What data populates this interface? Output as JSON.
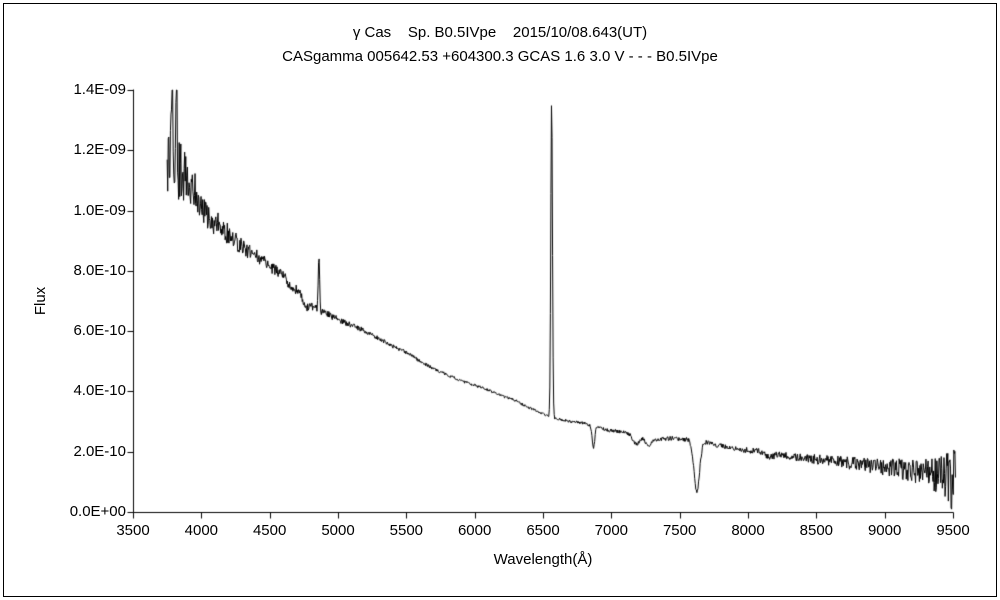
{
  "chart_data": {
    "type": "line",
    "title": "γ Cas    Sp. B0.5IVpe    2015/10/08.643(UT)",
    "subtitle": "CASgamma 005642.53 +604300.3 GCAS 1.6 3.0 V - - - B0.5IVpe",
    "xlabel": "Wavelength(Å)",
    "ylabel": "Flux",
    "xlim": [
      3500,
      9500
    ],
    "ylim": [
      0,
      1.4e-09
    ],
    "x_ticks": [
      3500,
      4000,
      4500,
      5000,
      5500,
      6000,
      6500,
      7000,
      7500,
      8000,
      8500,
      9000,
      9500
    ],
    "y_ticks": [
      {
        "value": 0,
        "label": "0.0E+00"
      },
      {
        "value": 2e-10,
        "label": "2.0E-10"
      },
      {
        "value": 4e-10,
        "label": "4.0E-10"
      },
      {
        "value": 6e-10,
        "label": "6.0E-10"
      },
      {
        "value": 8e-10,
        "label": "8.0E-10"
      },
      {
        "value": 1e-09,
        "label": "1.0E-09"
      },
      {
        "value": 1.2e-09,
        "label": "1.2E-09"
      },
      {
        "value": 1.4e-09,
        "label": "1.4E-09"
      }
    ],
    "line_color": "#000000",
    "background": "#ffffff",
    "grid": false,
    "wavelength_range": [
      3750,
      9520
    ],
    "flux_scale": 1e-10,
    "continuum": [
      [
        3750,
        11.8
      ],
      [
        3790,
        12.0
      ],
      [
        3850,
        11.2
      ],
      [
        3900,
        11.0
      ],
      [
        3950,
        10.7
      ],
      [
        4000,
        10.1
      ],
      [
        4060,
        9.65
      ],
      [
        4120,
        9.55
      ],
      [
        4200,
        9.2
      ],
      [
        4300,
        8.8
      ],
      [
        4400,
        8.5
      ],
      [
        4500,
        8.15
      ],
      [
        4600,
        7.85
      ],
      [
        4650,
        7.5
      ],
      [
        4700,
        7.35
      ],
      [
        4760,
        7.0
      ],
      [
        4820,
        6.8
      ],
      [
        4861,
        6.7
      ],
      [
        4950,
        6.5
      ],
      [
        5000,
        6.4
      ],
      [
        5100,
        6.2
      ],
      [
        5200,
        6.0
      ],
      [
        5300,
        5.75
      ],
      [
        5400,
        5.5
      ],
      [
        5500,
        5.3
      ],
      [
        5600,
        5.0
      ],
      [
        5700,
        4.75
      ],
      [
        5800,
        4.55
      ],
      [
        5900,
        4.35
      ],
      [
        6000,
        4.2
      ],
      [
        6100,
        4.05
      ],
      [
        6200,
        3.85
      ],
      [
        6300,
        3.7
      ],
      [
        6400,
        3.45
      ],
      [
        6500,
        3.25
      ],
      [
        6600,
        3.1
      ],
      [
        6700,
        3.0
      ],
      [
        6800,
        2.95
      ],
      [
        6900,
        2.8
      ],
      [
        7000,
        2.7
      ],
      [
        7100,
        2.65
      ],
      [
        7200,
        2.55
      ],
      [
        7300,
        2.4
      ],
      [
        7450,
        2.45
      ],
      [
        7550,
        2.4
      ],
      [
        7700,
        2.3
      ],
      [
        7800,
        2.2
      ],
      [
        7900,
        2.1
      ],
      [
        8000,
        2.05
      ],
      [
        8100,
        2.0
      ],
      [
        8200,
        1.95
      ],
      [
        8300,
        1.85
      ],
      [
        8400,
        1.8
      ],
      [
        8500,
        1.75
      ],
      [
        8600,
        1.7
      ],
      [
        8700,
        1.65
      ],
      [
        8800,
        1.6
      ],
      [
        8900,
        1.55
      ],
      [
        9000,
        1.5
      ],
      [
        9100,
        1.45
      ],
      [
        9200,
        1.35
      ],
      [
        9300,
        1.3
      ],
      [
        9400,
        1.25
      ],
      [
        9520,
        1.2
      ]
    ],
    "emission_lines": [
      {
        "name": "H-beta",
        "center": 4861,
        "amplitude": 1.8,
        "sigma": 5
      },
      {
        "name": "H-alpha",
        "center": 6563,
        "amplitude": 10.5,
        "sigma": 6
      }
    ],
    "absorption_bands": [
      {
        "name": "dip-4765",
        "center": 4765,
        "depth": 0.22,
        "sigma": 14
      },
      {
        "name": "telluric-B-band",
        "center": 6869,
        "depth": 0.75,
        "sigma": 9
      },
      {
        "name": "telluric-H2O-7180",
        "center": 7180,
        "depth": 0.32,
        "sigma": 24
      },
      {
        "name": "telluric-H2O-7270",
        "center": 7270,
        "depth": 0.25,
        "sigma": 20
      },
      {
        "name": "telluric-A-band",
        "center": 7625,
        "depth": 1.7,
        "sigma": 20
      },
      {
        "name": "telluric-H2O-8160",
        "center": 8160,
        "depth": 0.16,
        "sigma": 30
      },
      {
        "name": "red-end-dip",
        "center": 9488,
        "depth": 1.0,
        "sigma": 6
      }
    ],
    "noise_spikes": [
      {
        "name": "blue-end-spike-1",
        "center": 3788,
        "amplitude": 2.6,
        "sigma": 4
      },
      {
        "name": "blue-end-spike-2",
        "center": 3818,
        "amplitude": 2.9,
        "sigma": 4
      },
      {
        "name": "red-end-spike",
        "center": 9512,
        "amplitude": 1.6,
        "sigma": 5
      }
    ],
    "noise_amplitude": [
      [
        3750,
        1.3
      ],
      [
        3820,
        1.15
      ],
      [
        3900,
        0.8
      ],
      [
        3980,
        0.55
      ],
      [
        4100,
        0.4
      ],
      [
        4300,
        0.27
      ],
      [
        4600,
        0.18
      ],
      [
        4900,
        0.12
      ],
      [
        5200,
        0.08
      ],
      [
        5600,
        0.05
      ],
      [
        6000,
        0.045
      ],
      [
        6500,
        0.045
      ],
      [
        6900,
        0.055
      ],
      [
        7400,
        0.07
      ],
      [
        7900,
        0.09
      ],
      [
        8300,
        0.12
      ],
      [
        8600,
        0.18
      ],
      [
        8900,
        0.25
      ],
      [
        9100,
        0.32
      ],
      [
        9300,
        0.45
      ],
      [
        9420,
        0.7
      ],
      [
        9520,
        1.1
      ]
    ]
  }
}
